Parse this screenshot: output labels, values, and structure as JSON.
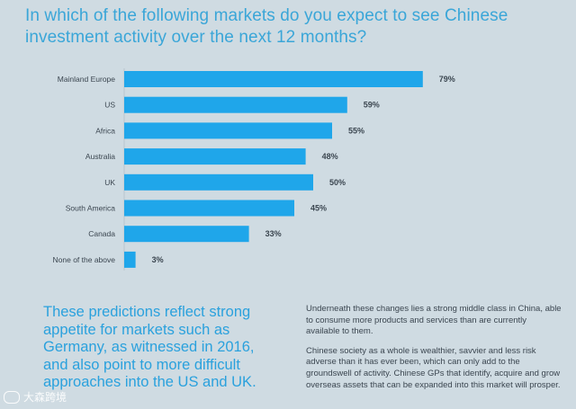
{
  "title_lines": [
    "In which of the following markets do you expect to see Chinese",
    "investment activity over the next 12 months?"
  ],
  "chart_data": {
    "type": "bar",
    "orientation": "horizontal",
    "categories": [
      "Mainland Europe",
      "US",
      "Africa",
      "Australia",
      "UK",
      "South America",
      "Canada",
      "None of the above"
    ],
    "values": [
      79,
      59,
      55,
      48,
      50,
      45,
      33,
      3
    ],
    "value_labels": [
      "79%",
      "59%",
      "55%",
      "48%",
      "50%",
      "45%",
      "33%",
      "3%"
    ],
    "unit": "%",
    "xlim": [
      0,
      100
    ],
    "bar_color": "#1fa6ea",
    "grid": false
  },
  "callout_text": "These predictions reflect strong appetite for markets such as Germany, as witnessed in 2016, and also point to more difficult approaches into the US and UK.",
  "body_paragraphs": [
    "Underneath these changes lies a strong middle class in China, able to consume more products and services than are currently available to them.",
    "Chinese society as a whole is wealthier, savvier and less risk adverse than it has ever been, which can only add to the groundswell of activity. Chinese GPs that identify, acquire and grow overseas assets that can be expanded into this market will prosper."
  ],
  "watermark_text": "大森跨境",
  "colors": {
    "background": "#cfdbe2",
    "title": "#3aa6d8",
    "callout": "#2aa1dd",
    "body_text": "#3b4650"
  }
}
